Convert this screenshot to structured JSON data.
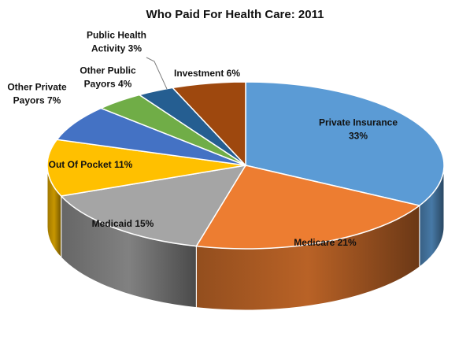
{
  "chart_data": {
    "type": "pie",
    "title": "Who Paid For Health Care: 2011",
    "unit": "%",
    "slices": [
      {
        "name": "Private Insurance",
        "value": 33,
        "label_lines": [
          "Private Insurance",
          "33%"
        ],
        "color": "#5B9BD5"
      },
      {
        "name": "Medicare",
        "value": 21,
        "label_lines": [
          "Medicare 21%"
        ],
        "color": "#ED7D31"
      },
      {
        "name": "Medicaid",
        "value": 15,
        "label_lines": [
          "Medicaid 15%"
        ],
        "color": "#A5A5A5"
      },
      {
        "name": "Out Of Pocket",
        "value": 11,
        "label_lines": [
          "Out Of Pocket 11%"
        ],
        "color": "#FFC000"
      },
      {
        "name": "Other Private Payors",
        "value": 7,
        "label_lines": [
          "Other Private",
          "Payors 7%"
        ],
        "color": "#4472C4"
      },
      {
        "name": "Other Public Payors",
        "value": 4,
        "label_lines": [
          "Other Public",
          "Payors 4%"
        ],
        "color": "#70AD47"
      },
      {
        "name": "Public Health Activity",
        "value": 3,
        "label_lines": [
          "Public Health",
          "Activity 3%"
        ],
        "color": "#255E91"
      },
      {
        "name": "Investment",
        "value": 6,
        "label_lines": [
          "Investment 6%"
        ],
        "color": "#9E480E"
      }
    ]
  }
}
